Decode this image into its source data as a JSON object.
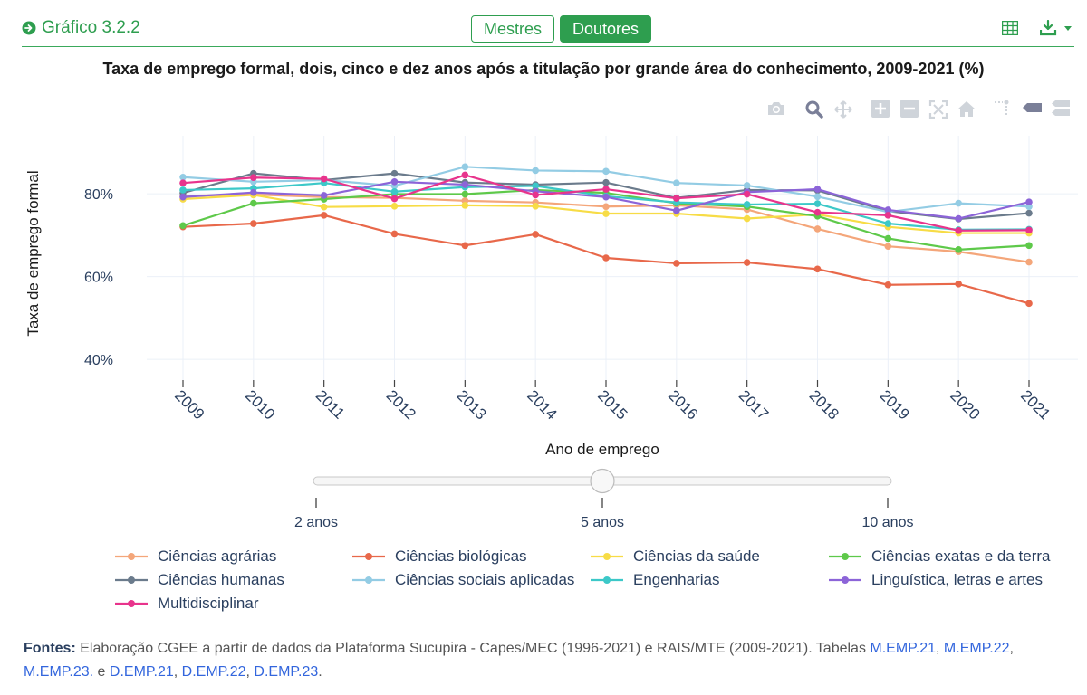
{
  "header": {
    "graph_id": "Gráfico 3.2.2",
    "tabs": [
      "Mestres",
      "Doutores"
    ],
    "active_tab": "Doutores"
  },
  "title": "Taxa de emprego formal, dois, cinco e dez anos após a titulação por grande área do conhecimento, 2009-2021 (%)",
  "slider": {
    "labels": [
      "2 anos",
      "5 anos",
      "10 anos"
    ],
    "selected": "5 anos"
  },
  "sources": {
    "label": "Fontes:",
    "text": "Elaboração CGEE a partir de dados da Plataforma Sucupira - Capes/MEC (1996-2021) e RAIS/MTE (2009-2021). Tabelas",
    "links": [
      "M.EMP.21",
      "M.EMP.22",
      "M.EMP.23.",
      "D.EMP.21",
      "D.EMP.22",
      "D.EMP.23"
    ],
    "sep_and": "e"
  },
  "chart_data": {
    "type": "line",
    "xlabel": "Ano de emprego",
    "ylabel": "Taxa de emprego formal",
    "x": [
      2009,
      2010,
      2011,
      2012,
      2013,
      2014,
      2015,
      2016,
      2017,
      2018,
      2019,
      2020,
      2021
    ],
    "ylim": [
      35,
      94
    ],
    "yticks": [
      40,
      60,
      80
    ],
    "ytick_labels": [
      "40%",
      "60%",
      "80%"
    ],
    "grid": true,
    "legend_position": "bottom",
    "series": [
      {
        "name": "Ciências agrárias",
        "color": "#f4a67a",
        "values": [
          79.5,
          79.8,
          79.2,
          79.0,
          78.3,
          77.9,
          76.9,
          77.2,
          76.2,
          71.5,
          67.3,
          66.0,
          63.5
        ]
      },
      {
        "name": "Ciências biológicas",
        "color": "#e8684a",
        "values": [
          72.0,
          72.8,
          74.8,
          70.3,
          67.5,
          70.2,
          64.5,
          63.2,
          63.4,
          61.8,
          58.0,
          58.2,
          53.5
        ]
      },
      {
        "name": "Ciências da saúde",
        "color": "#f7dc46",
        "values": [
          78.7,
          79.7,
          76.8,
          77.0,
          77.2,
          77.0,
          75.2,
          75.2,
          74.0,
          75.0,
          72.0,
          70.5,
          70.5
        ]
      },
      {
        "name": "Ciências exatas e da terra",
        "color": "#5ec94a",
        "values": [
          72.3,
          77.7,
          78.7,
          79.9,
          79.9,
          80.9,
          80.2,
          77.7,
          76.9,
          74.6,
          69.2,
          66.5,
          67.5
        ]
      },
      {
        "name": "Ciências humanas",
        "color": "#6b7b8c",
        "values": [
          80.2,
          84.9,
          83.3,
          84.9,
          82.7,
          82.2,
          82.7,
          79.0,
          80.9,
          80.8,
          75.8,
          73.9,
          75.3
        ]
      },
      {
        "name": "Ciências sociais aplicadas",
        "color": "#93cce4",
        "values": [
          84.0,
          82.9,
          83.3,
          81.9,
          86.5,
          85.6,
          85.4,
          82.6,
          82.0,
          79.3,
          75.6,
          77.7,
          76.9
        ]
      },
      {
        "name": "Engenharias",
        "color": "#3cc8c8",
        "values": [
          80.9,
          81.3,
          82.6,
          80.5,
          81.6,
          81.9,
          79.4,
          77.9,
          77.4,
          77.6,
          72.8,
          71.3,
          71.4
        ]
      },
      {
        "name": "Linguística, letras e artes",
        "color": "#8c64d8",
        "values": [
          79.2,
          80.3,
          79.6,
          82.9,
          82.2,
          80.6,
          79.2,
          75.9,
          80.4,
          81.1,
          76.1,
          74.0,
          78.0
        ]
      },
      {
        "name": "Multidisciplinar",
        "color": "#e8348c",
        "values": [
          82.6,
          83.9,
          83.6,
          78.8,
          84.5,
          79.7,
          81.1,
          78.9,
          79.9,
          75.5,
          74.8,
          71.1,
          71.2
        ]
      }
    ]
  }
}
